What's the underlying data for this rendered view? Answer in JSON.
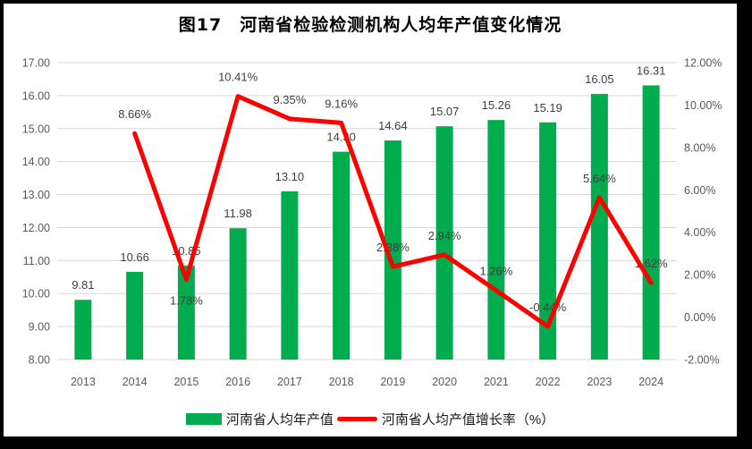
{
  "title": "图17　河南省检验检测机构人均年产值变化情况",
  "colors": {
    "bar": "#00AC4E",
    "line": "#FE0000",
    "grid": "#D9D9D9",
    "axis_text": "#595959",
    "label_text": "#404040",
    "frame_border": "#000000",
    "background": "#FFFFFF"
  },
  "chart_data": {
    "type": "combo",
    "title": "图17　河南省检验检测机构人均年产值变化情况",
    "categories": [
      "2013",
      "2014",
      "2015",
      "2016",
      "2017",
      "2018",
      "2019",
      "2020",
      "2021",
      "2022",
      "2023",
      "2024"
    ],
    "series": [
      {
        "name": "河南省人均年产值",
        "type": "bar",
        "axis": "left",
        "color": "#00AC4E",
        "values": [
          9.81,
          10.66,
          10.85,
          11.98,
          13.1,
          14.3,
          14.64,
          15.07,
          15.26,
          15.19,
          16.05,
          16.31
        ],
        "labels": [
          "9.81",
          "10.66",
          "10.85",
          "11.98",
          "13.10",
          "14.30",
          "14.64",
          "15.07",
          "15.26",
          "15.19",
          "16.05",
          "16.31"
        ]
      },
      {
        "name": "河南省人均产值增长率（%）",
        "type": "line",
        "axis": "right",
        "color": "#FE0000",
        "values": [
          null,
          8.66,
          1.78,
          10.41,
          9.35,
          9.16,
          2.38,
          2.94,
          1.26,
          -0.44,
          5.64,
          1.62
        ],
        "labels": [
          null,
          "8.66%",
          "1.78%",
          "10.41%",
          "9.35%",
          "9.16%",
          "2.38%",
          "2.94%",
          "1.26%",
          "-0.44%",
          "5.64%",
          "1.62%"
        ],
        "label_side": [
          null,
          "above",
          "below",
          "above",
          "above",
          "above",
          "above",
          "above",
          "above",
          "above",
          "above",
          "above"
        ]
      }
    ],
    "left_axis": {
      "min": 8,
      "max": 17,
      "step": 1,
      "ticks": [
        "17.00",
        "16.00",
        "15.00",
        "14.00",
        "13.00",
        "12.00",
        "11.00",
        "10.00",
        "9.00",
        "8.00"
      ]
    },
    "right_axis": {
      "min": -2,
      "max": 12,
      "step": 2,
      "ticks": [
        "12.00%",
        "10.00%",
        "8.00%",
        "6.00%",
        "4.00%",
        "2.00%",
        "0.00%",
        "-2.00%"
      ]
    },
    "grid": true,
    "grid_color": "#D9D9D9",
    "legend_position": "bottom"
  }
}
